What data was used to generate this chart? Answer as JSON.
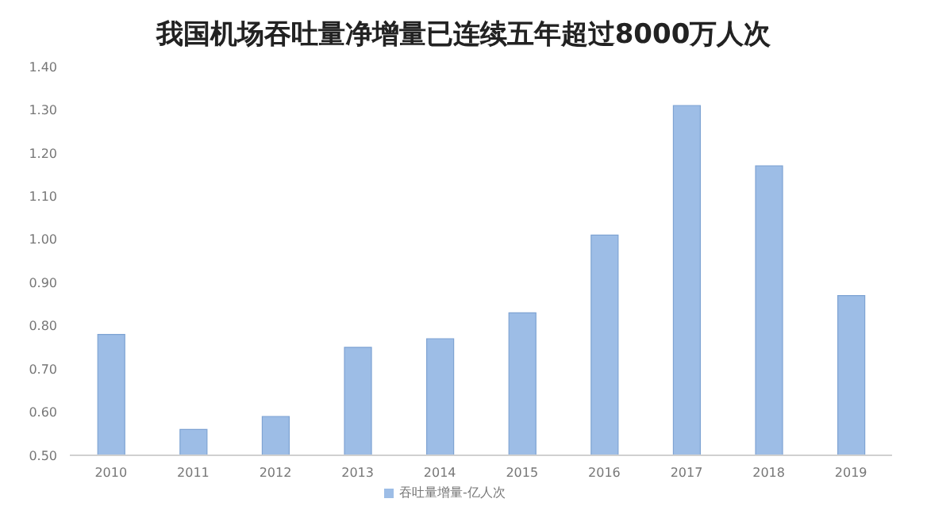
{
  "chart_data": {
    "type": "bar",
    "title": "我国机场吞吐量净增量已连续五年超过8000万人次",
    "categories": [
      "2010",
      "2011",
      "2012",
      "2013",
      "2014",
      "2015",
      "2016",
      "2017",
      "2018",
      "2019"
    ],
    "series": [
      {
        "name": "吞吐量增量-亿人次",
        "color": "#9dbde6",
        "values": [
          0.78,
          0.56,
          0.59,
          0.75,
          0.77,
          0.83,
          1.01,
          1.31,
          1.17,
          0.87
        ]
      }
    ],
    "ylim": [
      0.5,
      1.4
    ],
    "yticks": [
      {
        "value": 0.5,
        "label": "0.50"
      },
      {
        "value": 0.6,
        "label": "0.60"
      },
      {
        "value": 0.7,
        "label": "0.70"
      },
      {
        "value": 0.8,
        "label": "0.80"
      },
      {
        "value": 0.9,
        "label": "0.90"
      },
      {
        "value": 1.0,
        "label": "1.00"
      },
      {
        "value": 1.1,
        "label": "1.10"
      },
      {
        "value": 1.2,
        "label": "1.20"
      },
      {
        "value": 1.3,
        "label": "1.30"
      },
      {
        "value": 1.4,
        "label": "1.40"
      }
    ],
    "grid": false,
    "legend": "bottom"
  }
}
